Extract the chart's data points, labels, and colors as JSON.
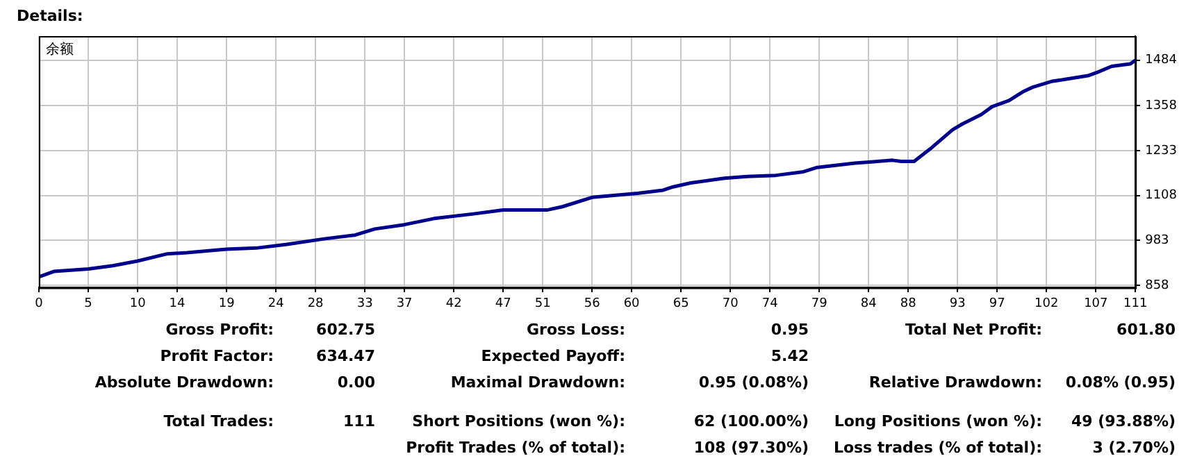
{
  "chart_data": {
    "type": "line",
    "title": "Details:",
    "legend": "top left",
    "grid": true,
    "marker": "none",
    "line_style": "solid",
    "series": [
      {
        "name": "余额",
        "color": "#00008b",
        "x": [
          0,
          1.5,
          5,
          7.5,
          10,
          13,
          15,
          19,
          22,
          25,
          29,
          32,
          34,
          37,
          40,
          44,
          47,
          51.5,
          53,
          56,
          60.6,
          63.2,
          64.2,
          66,
          69.4,
          71.7,
          74.6,
          77.4,
          78.8,
          82.6,
          84.5,
          86.4,
          87.3,
          88.6,
          90.2,
          92.5,
          93.5,
          95.4,
          96.5,
          98.2,
          99.6,
          100.6,
          102.5,
          103.9,
          106.2,
          107.2,
          108.6,
          110.5,
          111
        ],
        "values": [
          882,
          897,
          904,
          913,
          926,
          946,
          949,
          959,
          962,
          972,
          988,
          998,
          1015,
          1027,
          1044,
          1057,
          1068,
          1068,
          1077,
          1103,
          1114,
          1123,
          1132,
          1143,
          1156,
          1161,
          1164,
          1174,
          1186,
          1198,
          1202,
          1206,
          1203,
          1203,
          1237,
          1291,
          1307,
          1333,
          1355,
          1372,
          1396,
          1409,
          1425,
          1431,
          1441,
          1451,
          1467,
          1474,
          1484
        ]
      }
    ],
    "xlim": [
      0,
      111
    ],
    "xticks": [
      0,
      5,
      10,
      14,
      19,
      24,
      28,
      33,
      37,
      42,
      47,
      51,
      56,
      60,
      65,
      70,
      74,
      79,
      84,
      88,
      93,
      97,
      102,
      107,
      111
    ],
    "ylim": [
      852,
      1551
    ],
    "yticks": [
      858,
      983,
      1108,
      1233,
      1358,
      1484
    ],
    "annotations": [
      "Gross Profit:",
      "602.75",
      "Gross Loss:",
      "0.95",
      "Total Net Profit:",
      "601.80",
      "Profit Factor:",
      "634.47",
      "Expected Payoff:",
      "5.42",
      "Absolute Drawdown:",
      "0.00",
      "Maximal Drawdown:",
      "0.95 (0.08%)",
      "Relative Drawdown:",
      "0.08% (0.95)",
      "Total Trades:",
      "111",
      "Short Positions (won %):",
      "62 (100.00%)",
      "Long Positions (won %):",
      "49 (93.88%)",
      "Profit Trades (% of total):",
      "108 (97.30%)",
      "Loss trades (% of total):",
      "3 (2.70%)"
    ]
  }
}
